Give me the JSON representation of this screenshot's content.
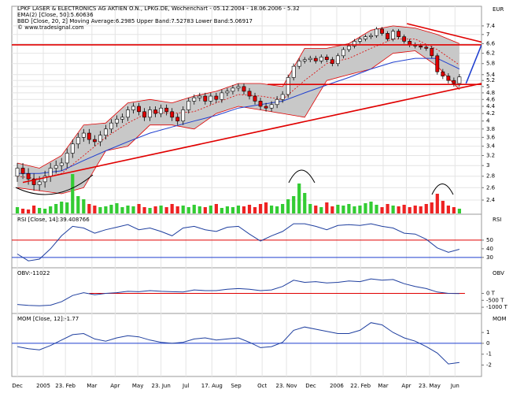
{
  "chart_data": [
    {
      "type": "candlestick",
      "title": "LPKF LASER & ELECTRONICS AG AKTIEN O.N., LPKG.DE, Wochenchart - 05.12.2004 - 18.06.2006 - 5.32",
      "credit": "© www.tradesignal.com",
      "y_label": "EUR",
      "log_scale": true,
      "grid": true,
      "xlim": [
        -1,
        84
      ],
      "ylim": [
        2.19,
        8.4
      ],
      "yticks": [
        7.4,
        7,
        6.6,
        6.2,
        5.8,
        5.4,
        5.2,
        5,
        4.8,
        4.6,
        4.4,
        4.2,
        4,
        3.8,
        3.6,
        3.4,
        3.2,
        3,
        2.8,
        2.6,
        2.4
      ],
      "xticks": [
        {
          "value": 0,
          "label": "Dec"
        },
        {
          "value": 4.7,
          "label": "2005"
        },
        {
          "value": 8.7,
          "label": "23. Feb"
        },
        {
          "value": 13.5,
          "label": "Mar"
        },
        {
          "value": 17.7,
          "label": "Apr"
        },
        {
          "value": 21.8,
          "label": "May"
        },
        {
          "value": 26,
          "label": "23. Jun"
        },
        {
          "value": 30.5,
          "label": "Jul"
        },
        {
          "value": 35.2,
          "label": "17. Aug"
        },
        {
          "value": 39.6,
          "label": "Sep"
        },
        {
          "value": 44.3,
          "label": "Oct"
        },
        {
          "value": 48.7,
          "label": "23. Nov"
        },
        {
          "value": 53.1,
          "label": "Dec"
        },
        {
          "value": 57.8,
          "label": "2006"
        },
        {
          "value": 62.1,
          "label": "22. Feb"
        },
        {
          "value": 66.2,
          "label": "Mar"
        },
        {
          "value": 70.4,
          "label": "Apr"
        },
        {
          "value": 74.6,
          "label": "23. May"
        },
        {
          "value": 79.2,
          "label": "Jun"
        }
      ],
      "up_color": "#ffffff",
      "down_color": "#e00000",
      "volume_up_color": "#33cc33",
      "volume_down_color": "#ee2222",
      "open": [
        2.8,
        2.95,
        2.85,
        2.75,
        2.65,
        2.7,
        2.8,
        2.95,
        3.0,
        3.05,
        3.25,
        3.45,
        3.6,
        3.7,
        3.55,
        3.5,
        3.65,
        3.8,
        3.95,
        4.05,
        4.1,
        4.3,
        4.4,
        4.25,
        4.1,
        4.3,
        4.2,
        4.35,
        4.25,
        4.1,
        4.0,
        4.3,
        4.55,
        4.65,
        4.7,
        4.55,
        4.7,
        4.6,
        4.8,
        4.85,
        4.95,
        5.0,
        4.85,
        4.7,
        4.55,
        4.4,
        4.35,
        4.45,
        4.6,
        4.75,
        5.3,
        5.7,
        5.9,
        5.95,
        6.0,
        5.9,
        6.05,
        5.95,
        5.8,
        6.1,
        6.35,
        6.5,
        6.7,
        6.8,
        6.9,
        6.95,
        7.25,
        7.05,
        6.8,
        7.15,
        6.9,
        6.7,
        6.55,
        6.5,
        6.45,
        6.4,
        6.1,
        5.5,
        5.35,
        5.2,
        5.1
      ],
      "high": [
        3.05,
        3.05,
        2.95,
        2.85,
        2.8,
        2.9,
        3.05,
        3.1,
        3.15,
        3.35,
        3.55,
        3.7,
        3.8,
        3.8,
        3.65,
        3.75,
        3.9,
        4.05,
        4.15,
        4.2,
        4.4,
        4.5,
        4.5,
        4.35,
        4.4,
        4.4,
        4.45,
        4.45,
        4.35,
        4.2,
        4.4,
        4.65,
        4.75,
        4.8,
        4.8,
        4.8,
        4.8,
        4.9,
        4.95,
        5.05,
        5.1,
        5.1,
        4.95,
        4.8,
        4.65,
        4.5,
        4.55,
        4.7,
        4.85,
        5.4,
        5.8,
        6.0,
        6.05,
        6.1,
        6.1,
        6.15,
        6.15,
        6.05,
        6.2,
        6.45,
        6.6,
        6.8,
        6.9,
        7.0,
        7.05,
        7.35,
        7.35,
        7.15,
        7.25,
        7.25,
        7.0,
        6.8,
        6.65,
        6.6,
        6.55,
        6.5,
        6.2,
        5.6,
        5.45,
        5.3,
        5.42
      ],
      "low": [
        2.7,
        2.75,
        2.65,
        2.55,
        2.55,
        2.6,
        2.7,
        2.85,
        2.9,
        2.95,
        3.15,
        3.35,
        3.5,
        3.45,
        3.4,
        3.4,
        3.55,
        3.7,
        3.85,
        3.95,
        4.0,
        4.2,
        4.15,
        4.0,
        4.0,
        4.1,
        4.1,
        4.15,
        4.0,
        3.9,
        3.9,
        4.2,
        4.45,
        4.55,
        4.45,
        4.45,
        4.5,
        4.5,
        4.7,
        4.75,
        4.85,
        4.75,
        4.6,
        4.45,
        4.3,
        4.25,
        4.25,
        4.35,
        4.5,
        4.65,
        5.2,
        5.6,
        5.8,
        5.85,
        5.8,
        5.8,
        5.85,
        5.7,
        5.7,
        6.0,
        6.25,
        6.4,
        6.6,
        6.7,
        6.8,
        6.85,
        6.95,
        6.7,
        6.7,
        6.8,
        6.6,
        6.45,
        6.4,
        6.35,
        6.3,
        6.0,
        5.4,
        5.25,
        5.1,
        5.0,
        5.0
      ],
      "close": [
        2.95,
        2.85,
        2.75,
        2.65,
        2.7,
        2.8,
        2.95,
        3.0,
        3.05,
        3.25,
        3.45,
        3.6,
        3.7,
        3.55,
        3.5,
        3.65,
        3.8,
        3.95,
        4.05,
        4.1,
        4.3,
        4.4,
        4.25,
        4.1,
        4.3,
        4.2,
        4.35,
        4.25,
        4.1,
        4.0,
        4.3,
        4.55,
        4.65,
        4.7,
        4.55,
        4.7,
        4.6,
        4.8,
        4.85,
        4.95,
        5.0,
        4.85,
        4.7,
        4.55,
        4.4,
        4.35,
        4.45,
        4.6,
        4.75,
        5.3,
        5.7,
        5.9,
        5.95,
        6.0,
        5.9,
        6.05,
        5.95,
        5.8,
        6.1,
        6.35,
        6.5,
        6.7,
        6.8,
        6.9,
        6.95,
        7.25,
        7.05,
        6.8,
        7.15,
        6.9,
        6.7,
        6.55,
        6.5,
        6.45,
        6.4,
        6.1,
        5.5,
        5.35,
        5.2,
        5.1,
        5.32
      ],
      "volume": [
        8,
        6,
        5,
        10,
        7,
        6,
        9,
        12,
        15,
        14,
        50,
        22,
        18,
        12,
        10,
        8,
        9,
        11,
        13,
        8,
        10,
        9,
        12,
        8,
        7,
        9,
        10,
        8,
        12,
        9,
        10,
        8,
        11,
        9,
        8,
        10,
        12,
        7,
        9,
        8,
        10,
        9,
        11,
        8,
        12,
        14,
        10,
        9,
        12,
        18,
        22,
        38,
        26,
        12,
        10,
        8,
        14,
        9,
        11,
        10,
        12,
        9,
        10,
        13,
        15,
        11,
        8,
        12,
        10,
        9,
        11,
        8,
        10,
        9,
        12,
        14,
        25,
        16,
        10,
        8,
        6
      ],
      "series": [
        {
          "name": "EMA(2) [Close, 50]:5.60636",
          "type": "line",
          "color": "#1f3fcf",
          "x": [
            0,
            4,
            8,
            12,
            16,
            20,
            24,
            28,
            32,
            36,
            40,
            44,
            48,
            52,
            56,
            60,
            64,
            68,
            72,
            76,
            80
          ],
          "values": [
            2.85,
            2.85,
            2.9,
            3.1,
            3.3,
            3.5,
            3.7,
            3.85,
            4.0,
            4.15,
            4.35,
            4.45,
            4.55,
            4.8,
            5.05,
            5.3,
            5.6,
            5.85,
            6.0,
            6.0,
            5.6
          ]
        },
        {
          "name": "BBD [Close, 20, 2] Moving Average:6.2985 Upper Band:7.52783 Lower Band:5.06917",
          "type": "band",
          "color": "#e00000",
          "fill": "#c8c8c8",
          "x": [
            0,
            4,
            8,
            12,
            16,
            20,
            24,
            28,
            32,
            36,
            40,
            44,
            48,
            52,
            56,
            60,
            64,
            68,
            72,
            76,
            80
          ],
          "upper": [
            3.05,
            2.95,
            3.2,
            3.9,
            3.95,
            4.5,
            4.6,
            4.5,
            4.7,
            4.85,
            5.1,
            5.1,
            5.0,
            6.4,
            6.4,
            6.6,
            7.2,
            7.4,
            7.3,
            7.0,
            6.6
          ],
          "middle": [
            2.8,
            2.75,
            2.85,
            3.2,
            3.6,
            3.95,
            4.25,
            4.2,
            4.25,
            4.5,
            4.75,
            4.7,
            4.6,
            5.2,
            5.8,
            6.0,
            6.4,
            6.8,
            6.8,
            6.35,
            5.75
          ],
          "lower": [
            2.6,
            2.55,
            2.5,
            2.6,
            3.3,
            3.4,
            3.9,
            3.9,
            3.8,
            4.2,
            4.4,
            4.3,
            4.2,
            4.1,
            5.2,
            5.4,
            5.6,
            6.2,
            6.3,
            5.7,
            4.9
          ]
        }
      ],
      "lines": [
        {
          "color": "#e00000",
          "x": [
            1,
            86
          ],
          "y": [
            2.69,
            5.18
          ]
        },
        {
          "color": "#e00000",
          "x": [
            -1,
            86
          ],
          "y": [
            6.55,
            6.55
          ]
        },
        {
          "color": "#e00000",
          "x": [
            70.5,
            86
          ],
          "y": [
            7.51,
            6.55
          ]
        },
        {
          "color": "#e00000",
          "x": [
            45.3,
            86
          ],
          "y": [
            5.07,
            5.07
          ]
        },
        {
          "color": "#1f3fcf",
          "x": [
            81.2,
            84
          ],
          "y": [
            5.1,
            6.55
          ]
        }
      ]
    },
    {
      "type": "line",
      "title": "RSI [Close, 14]:39.408766",
      "y_label": "RSI",
      "color": "#1f3f9f",
      "ylim": [
        18,
        80
      ],
      "yticks": [
        50,
        40,
        30
      ],
      "hlines": [
        {
          "value": 50,
          "color": "#e00000"
        },
        {
          "value": 30,
          "color": "#1f3fcf"
        }
      ],
      "x": [
        0,
        2,
        4,
        6,
        8,
        10,
        12,
        14,
        16,
        18,
        20,
        22,
        24,
        26,
        28,
        30,
        32,
        34,
        36,
        38,
        40,
        42,
        44,
        46,
        48,
        50,
        52,
        54,
        56,
        58,
        60,
        62,
        64,
        66,
        68,
        70,
        72,
        74,
        76,
        78,
        80
      ],
      "values": [
        34,
        26,
        28,
        40,
        55,
        66,
        64,
        58,
        62,
        65,
        68,
        62,
        64,
        60,
        55,
        64,
        66,
        62,
        60,
        65,
        66,
        57,
        49,
        55,
        60,
        69,
        69,
        66,
        62,
        67,
        68,
        67,
        69,
        66,
        64,
        58,
        57,
        51,
        41,
        36,
        39.4
      ]
    },
    {
      "type": "line",
      "title": "OBV:-11022",
      "y_label": "OBV",
      "color": "#1f3f9f",
      "ylim": [
        -1450000,
        1850000
      ],
      "yticks": [
        {
          "value": 0,
          "label": "0 T"
        },
        {
          "value": -500000,
          "label": "-500 T"
        },
        {
          "value": -1000000,
          "label": "-1000 T"
        }
      ],
      "hlines": [
        {
          "value": 0,
          "color": "#e00000",
          "x": [
            13,
            81
          ]
        }
      ],
      "x": [
        0,
        2,
        4,
        6,
        8,
        10,
        12,
        14,
        16,
        18,
        20,
        22,
        24,
        26,
        28,
        30,
        32,
        34,
        36,
        38,
        40,
        42,
        44,
        46,
        48,
        50,
        52,
        54,
        56,
        58,
        60,
        62,
        64,
        66,
        68,
        70,
        72,
        74,
        76,
        78,
        80
      ],
      "values": [
        -800000,
        -870000,
        -900000,
        -850000,
        -600000,
        -150000,
        50000,
        -100000,
        0,
        50000,
        150000,
        120000,
        200000,
        150000,
        120000,
        100000,
        250000,
        200000,
        200000,
        300000,
        350000,
        300000,
        200000,
        250000,
        500000,
        950000,
        800000,
        850000,
        750000,
        800000,
        900000,
        850000,
        1050000,
        950000,
        1000000,
        700000,
        500000,
        350000,
        100000,
        0,
        -11022
      ]
    },
    {
      "type": "line",
      "title": "MOM [Close, 12]:-1.77",
      "y_label": "MOM",
      "color": "#1f3f9f",
      "ylim": [
        -3.05,
        2.75
      ],
      "yticks": [
        1,
        0,
        -1,
        -2
      ],
      "hlines": [
        {
          "value": 0,
          "color": "#1f3fcf"
        }
      ],
      "x": [
        0,
        2,
        4,
        6,
        8,
        10,
        12,
        14,
        16,
        18,
        20,
        22,
        24,
        26,
        28,
        30,
        32,
        34,
        36,
        38,
        40,
        42,
        44,
        46,
        48,
        50,
        52,
        54,
        56,
        58,
        60,
        62,
        64,
        66,
        68,
        70,
        72,
        74,
        76,
        78,
        80
      ],
      "values": [
        -0.3,
        -0.5,
        -0.6,
        -0.2,
        0.3,
        0.8,
        0.9,
        0.4,
        0.2,
        0.5,
        0.7,
        0.6,
        0.3,
        0.1,
        0,
        0.1,
        0.4,
        0.5,
        0.3,
        0.4,
        0.5,
        0.1,
        -0.4,
        -0.3,
        0.1,
        1.2,
        1.5,
        1.3,
        1.1,
        0.9,
        0.9,
        1.2,
        1.9,
        1.7,
        1,
        0.5,
        0.2,
        -0.3,
        -0.9,
        -1.9,
        -1.77
      ]
    }
  ]
}
